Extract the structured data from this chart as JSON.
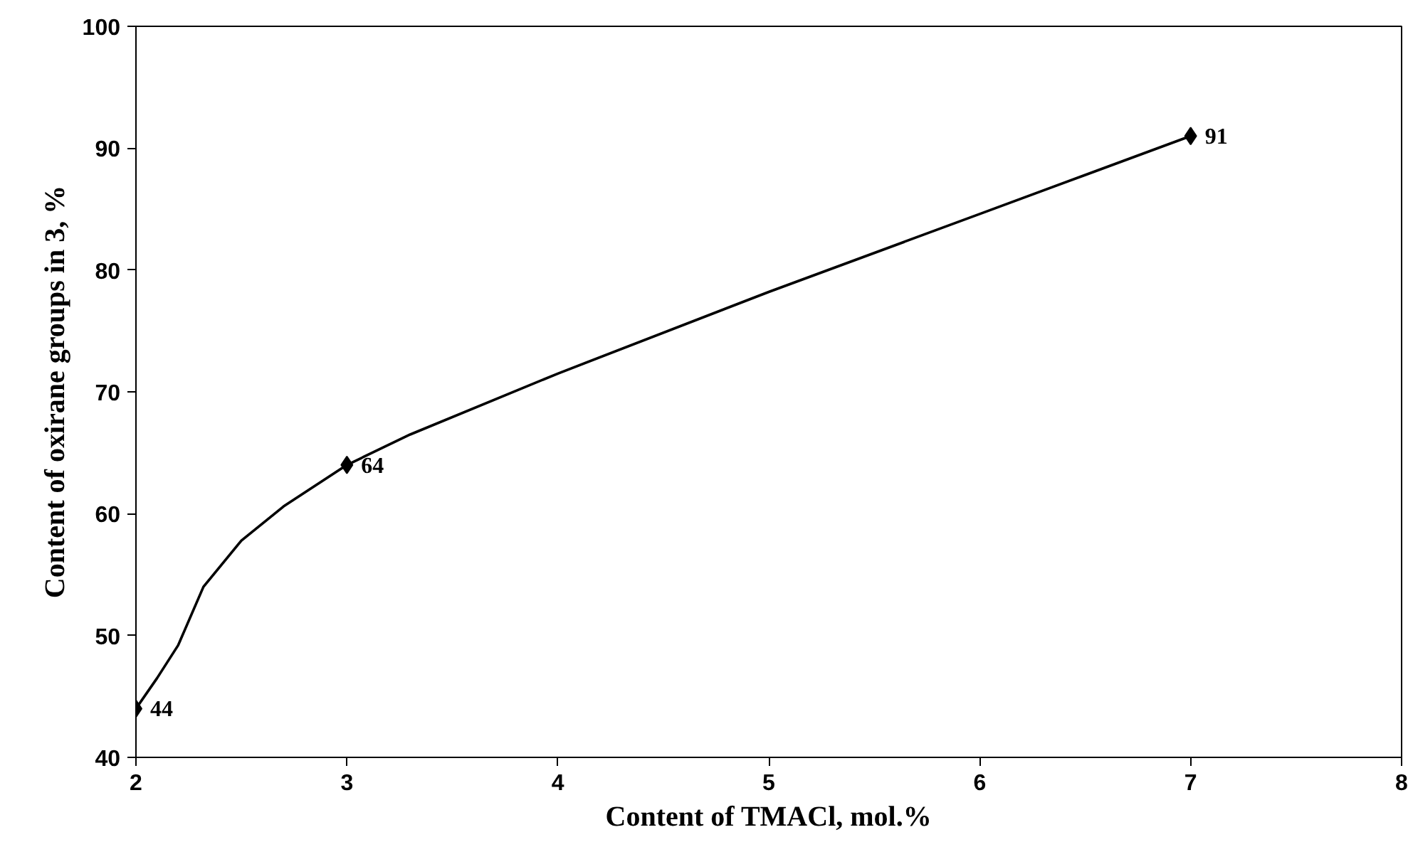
{
  "chart_data": {
    "type": "line",
    "xlabel": "Content of TMACl, mol.%",
    "ylabel": "Content of oxirane groups in 3, %",
    "series": [
      {
        "color": "#000000",
        "marker": "none",
        "x": [
          2,
          2.1,
          2.2,
          2.32,
          2.5,
          2.7,
          3,
          3.3,
          4,
          5,
          6,
          7
        ],
        "values": [
          44,
          46.5,
          49.2,
          54,
          57.8,
          60.6,
          64,
          66.5,
          71.5,
          78.2,
          84.6,
          91
        ]
      },
      {
        "type": "scatter",
        "color": "#000000",
        "x": [
          2,
          3,
          7
        ],
        "values": [
          44,
          64,
          91
        ],
        "value_labels": [
          "44",
          "64",
          "91"
        ]
      }
    ],
    "xlim": [
      2,
      8
    ],
    "xticks": [
      2,
      3,
      4,
      5,
      6,
      7,
      8
    ],
    "ylim": [
      40,
      100
    ],
    "yticks": [
      40,
      50,
      60,
      70,
      80,
      90,
      100
    ],
    "marker": "diamond",
    "line_style": "solid",
    "grid": false
  }
}
